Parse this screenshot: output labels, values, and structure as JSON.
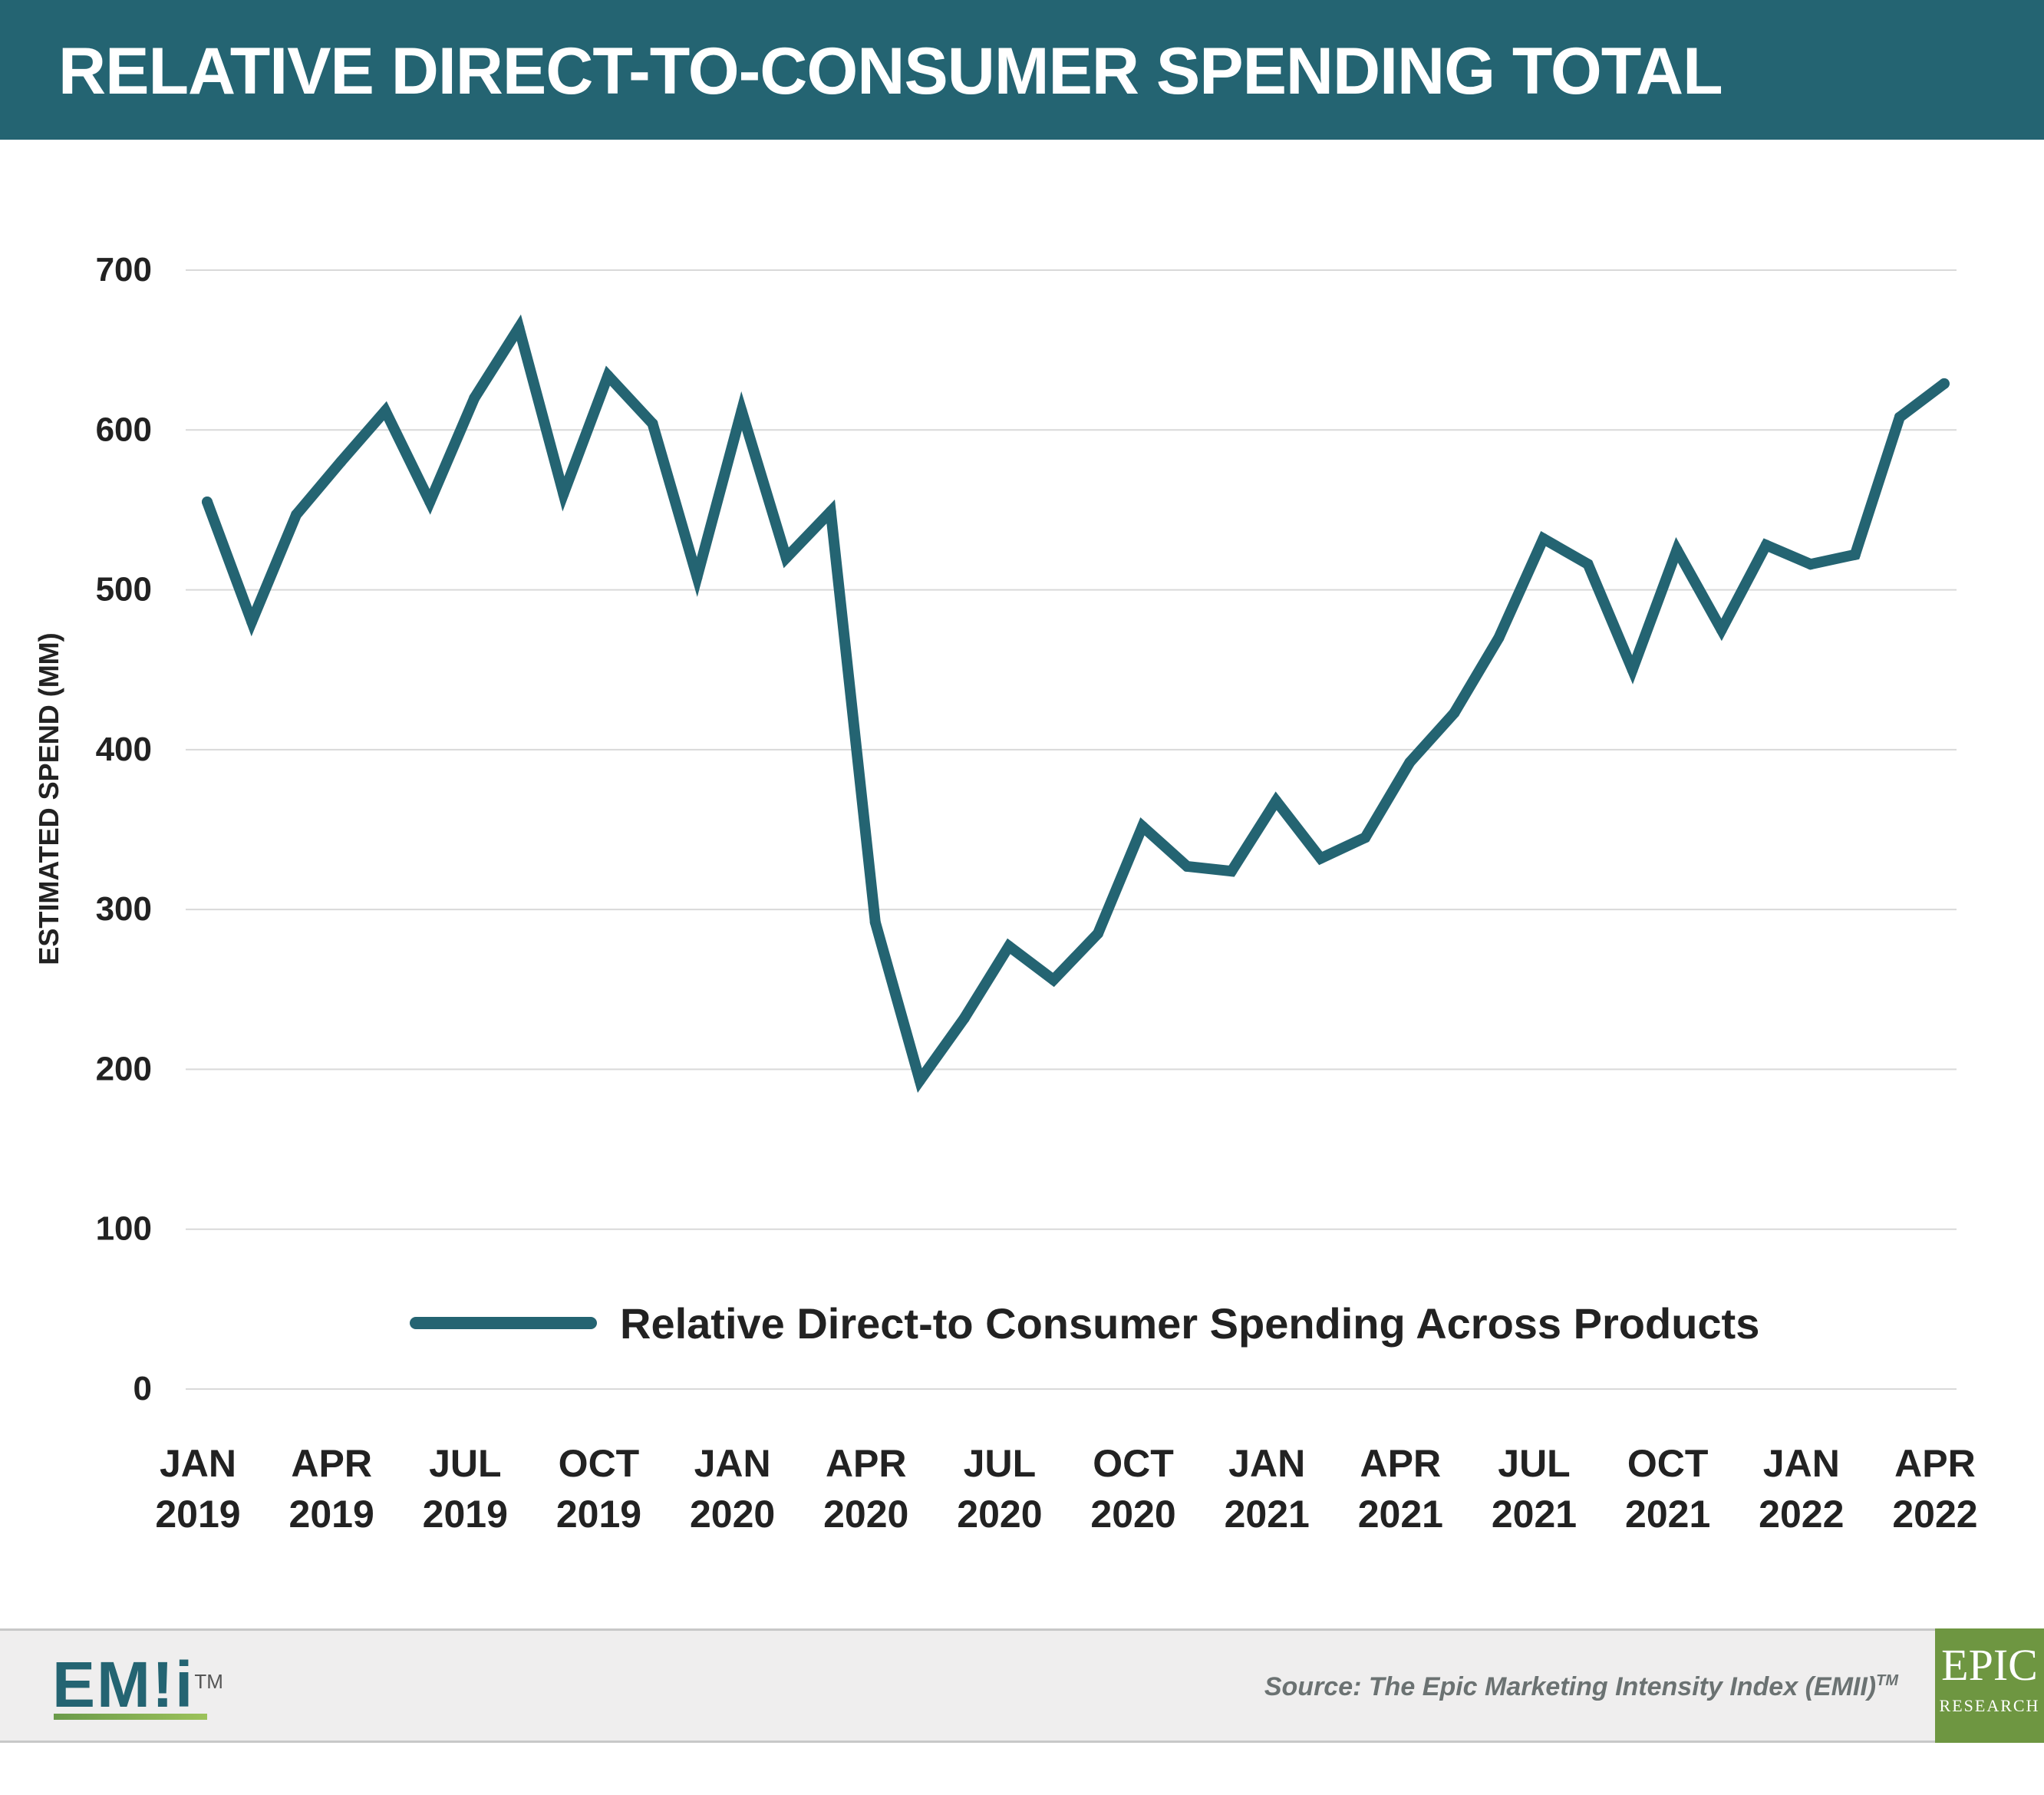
{
  "header": {
    "title": "RELATIVE DIRECT-TO-CONSUMER SPENDING TOTAL"
  },
  "colors": {
    "header_bg": "#246472",
    "line": "#246472",
    "grid": "#d9d9d9",
    "text": "#222222",
    "epic_green": "#6e9641"
  },
  "chart_data": {
    "type": "line",
    "ylabel": "ESTIMATED SPEND (MM)",
    "ylim": [
      0,
      700
    ],
    "yticks": [
      "0",
      "100",
      "200",
      "300",
      "400",
      "500",
      "600",
      "700"
    ],
    "x_tick_labels": [
      {
        "month": "JAN",
        "year": "2019",
        "index": 0
      },
      {
        "month": "APR",
        "year": "2019",
        "index": 3
      },
      {
        "month": "JUL",
        "year": "2019",
        "index": 6
      },
      {
        "month": "OCT",
        "year": "2019",
        "index": 9
      },
      {
        "month": "JAN",
        "year": "2020",
        "index": 12
      },
      {
        "month": "APR",
        "year": "2020",
        "index": 15
      },
      {
        "month": "JUL",
        "year": "2020",
        "index": 18
      },
      {
        "month": "OCT",
        "year": "2020",
        "index": 21
      },
      {
        "month": "JAN",
        "year": "2021",
        "index": 24
      },
      {
        "month": "APR",
        "year": "2021",
        "index": 27
      },
      {
        "month": "JUL",
        "year": "2021",
        "index": 30
      },
      {
        "month": "OCT",
        "year": "2021",
        "index": 33
      },
      {
        "month": "JAN",
        "year": "2022",
        "index": 36
      },
      {
        "month": "APR",
        "year": "2022",
        "index": 39
      }
    ],
    "x": [
      "Jan 2019",
      "Feb 2019",
      "Mar 2019",
      "Apr 2019",
      "May 2019",
      "Jun 2019",
      "Jul 2019",
      "Aug 2019",
      "Sep 2019",
      "Oct 2019",
      "Nov 2019",
      "Dec 2019",
      "Jan 2020",
      "Feb 2020",
      "Mar 2020",
      "Apr 2020",
      "May 2020",
      "Jun 2020",
      "Jul 2020",
      "Aug 2020",
      "Sep 2020",
      "Oct 2020",
      "Nov 2020",
      "Dec 2020",
      "Jan 2021",
      "Feb 2021",
      "Mar 2021",
      "Apr 2021",
      "May 2021",
      "Jun 2021",
      "Jul 2021",
      "Aug 2021",
      "Sep 2021",
      "Oct 2021",
      "Nov 2021",
      "Dec 2021",
      "Jan 2022",
      "Feb 2022",
      "Mar 2022",
      "Apr 2022"
    ],
    "series": [
      {
        "name": "Relative Direct-to Consumer Spending Across Products",
        "values": [
          555,
          480,
          547,
          580,
          612,
          555,
          620,
          664,
          560,
          634,
          604,
          508,
          612,
          520,
          549,
          292,
          193,
          232,
          277,
          256,
          285,
          352,
          327,
          324,
          368,
          332,
          345,
          392,
          423,
          470,
          532,
          516,
          450,
          525,
          475,
          528,
          516,
          522,
          608,
          629
        ]
      }
    ],
    "legend_position": "bottom-center",
    "grid": true
  },
  "footer": {
    "logo_text": "EM!i",
    "logo_tm": "TM",
    "source_text": "Source: The Epic Marketing Intensity Index (EMII)",
    "source_tm": "TM",
    "epic_word": "EPIC",
    "epic_sub": "RESEARCH"
  }
}
